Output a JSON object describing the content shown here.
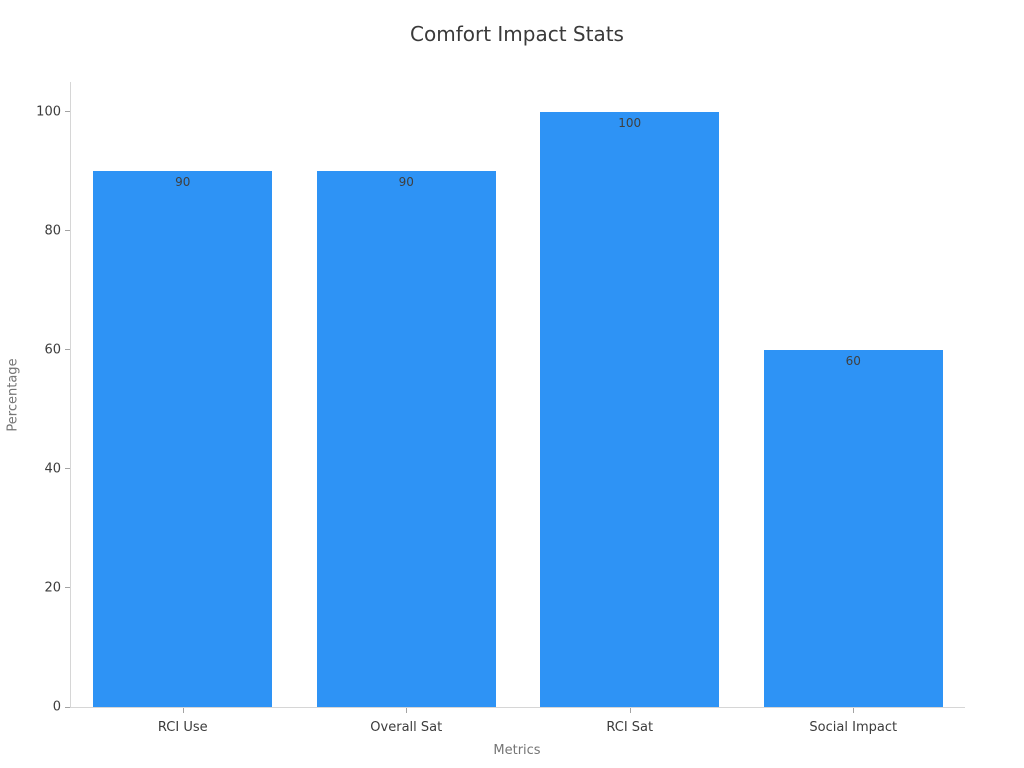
{
  "chart_data": {
    "type": "bar",
    "title": "Comfort Impact Stats",
    "xlabel": "Metrics",
    "ylabel": "Percentage",
    "categories": [
      "RCI Use",
      "Overall Sat",
      "RCI Sat",
      "Social Impact"
    ],
    "values": [
      90,
      90,
      100,
      60
    ],
    "bar_labels": [
      "90",
      "90",
      "100",
      "60"
    ],
    "yticks": [
      0,
      20,
      40,
      60,
      80,
      100
    ],
    "ylim": [
      0,
      105
    ],
    "grid": false,
    "legend": "none",
    "bar_width_fraction": 0.8,
    "colors": {
      "bar": "#2e93f5",
      "spine": "#d6d6d6",
      "tick_mark": "#a3a3a3",
      "tick_label": "#3c3c3c",
      "axis_label": "#757575",
      "title": "#3a3a3a",
      "value_label": "#3f3f3f",
      "background": "#ffffff"
    }
  }
}
